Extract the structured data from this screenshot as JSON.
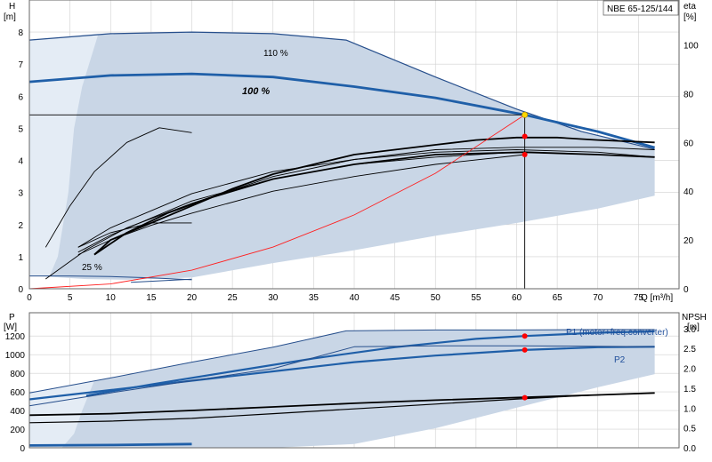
{
  "colors": {
    "envelope_fill": "#c9d6e6",
    "light_fill": "#e4ecf5",
    "envelope_edge": "#274f8c",
    "curve_blue": "#1f5fa8",
    "eta_black": "#000000",
    "system_red": "#ff2020",
    "marker_red": "#ff0000",
    "marker_yellow": "#ffd700"
  },
  "chart_data": [
    {
      "type": "line",
      "name": "head-eta",
      "title": "NBE 65-125/144",
      "x_axis": {
        "label": "Q [m³/h]",
        "range": [
          0,
          80
        ],
        "ticks": [
          0,
          5,
          10,
          15,
          20,
          25,
          30,
          35,
          40,
          45,
          50,
          55,
          60,
          65,
          70,
          75
        ]
      },
      "y_axis_left": {
        "label_top": "H",
        "label_unit": "[m]",
        "range": [
          0,
          9
        ],
        "ticks": [
          0,
          1,
          2,
          3,
          4,
          5,
          6,
          7,
          8
        ]
      },
      "y_axis_right": {
        "label_top": "eta",
        "label_unit": "[%]",
        "range": [
          0,
          118.4
        ],
        "ticks": [
          0,
          20,
          40,
          60,
          80,
          100
        ]
      },
      "labels": {
        "max": "110 %",
        "nominal": "100 %",
        "min": "25 %"
      },
      "grid": true,
      "envelope_upper": [
        [
          0,
          7.75
        ],
        [
          10,
          7.95
        ],
        [
          20,
          8.0
        ],
        [
          30,
          7.95
        ],
        [
          39,
          7.75
        ],
        [
          50,
          6.6
        ],
        [
          60,
          5.6
        ],
        [
          68,
          4.9
        ],
        [
          77,
          4.35
        ]
      ],
      "envelope_lower": [
        [
          77,
          2.9
        ],
        [
          70,
          2.5
        ],
        [
          60,
          2.05
        ],
        [
          50,
          1.65
        ],
        [
          40,
          1.2
        ],
        [
          30,
          0.8
        ],
        [
          20,
          0.35
        ],
        [
          12,
          0.28
        ],
        [
          7,
          0.3
        ],
        [
          2,
          0.38
        ],
        [
          0,
          0.4
        ],
        [
          0,
          6.45
        ]
      ],
      "light_region": [
        [
          0,
          7.75
        ],
        [
          8.5,
          7.95
        ],
        [
          6.5,
          6.3
        ],
        [
          5.5,
          5.0
        ],
        [
          4.8,
          3.0
        ],
        [
          3.5,
          1.0
        ],
        [
          2.5,
          0.4
        ],
        [
          0,
          0.4
        ]
      ],
      "series": [
        {
          "name": "110 %",
          "axis": "H",
          "points": [
            [
              0,
              7.75
            ],
            [
              10,
              7.95
            ],
            [
              20,
              8.0
            ],
            [
              30,
              7.95
            ],
            [
              39,
              7.75
            ],
            [
              50,
              6.6
            ],
            [
              60,
              5.6
            ],
            [
              68,
              4.9
            ],
            [
              77,
              4.35
            ]
          ]
        },
        {
          "name": "100 %",
          "axis": "H",
          "points": [
            [
              0,
              6.45
            ],
            [
              10,
              6.65
            ],
            [
              20,
              6.7
            ],
            [
              30,
              6.6
            ],
            [
              40,
              6.3
            ],
            [
              50,
              5.95
            ],
            [
              61,
              5.42
            ],
            [
              70,
              4.9
            ],
            [
              77,
              4.4
            ]
          ]
        },
        {
          "name": "25 %",
          "axis": "H",
          "points": [
            [
              0,
              0.4
            ],
            [
              5,
              0.4
            ],
            [
              10,
              0.38
            ],
            [
              15,
              0.34
            ],
            [
              20,
              0.28
            ]
          ]
        },
        {
          "name": "",
          "axis": "H",
          "points": [
            [
              12.5,
              0.2
            ],
            [
              20,
              0.3
            ]
          ]
        },
        {
          "name": "",
          "axis": "eta",
          "points": [
            [
              2,
              17
            ],
            [
              5,
              34
            ],
            [
              8,
              48
            ],
            [
              12,
              60
            ],
            [
              16,
              66
            ],
            [
              20,
              64
            ]
          ]
        },
        {
          "name": "",
          "axis": "eta",
          "points": [
            [
              6,
              17
            ],
            [
              10,
              23
            ],
            [
              15,
              27
            ],
            [
              20,
              27
            ]
          ]
        },
        {
          "name": "",
          "axis": "eta",
          "points": [
            [
              2,
              4
            ],
            [
              7,
              16
            ],
            [
              12,
              25
            ],
            [
              20,
              35
            ],
            [
              30,
              46
            ],
            [
              40,
              53
            ],
            [
              50,
              57
            ],
            [
              60,
              58
            ],
            [
              70,
              58
            ],
            [
              77,
              57
            ]
          ]
        },
        {
          "name": "",
          "axis": "eta",
          "points": [
            [
              6,
              17
            ],
            [
              10,
              25
            ],
            [
              15,
              32
            ],
            [
              20,
              39
            ],
            [
              30,
              48
            ],
            [
              40,
              53
            ],
            [
              50,
              56
            ],
            [
              60,
              57
            ],
            [
              70,
              56
            ],
            [
              77,
              54
            ]
          ]
        },
        {
          "name": "",
          "axis": "eta",
          "points": [
            [
              6,
              15
            ],
            [
              10,
              22
            ],
            [
              15,
              29
            ],
            [
              20,
              36
            ],
            [
              30,
              45
            ],
            [
              40,
              51
            ],
            [
              50,
              54
            ],
            [
              60,
              56
            ],
            [
              70,
              55
            ]
          ]
        },
        {
          "name": "",
          "axis": "eta",
          "points": [
            [
              6,
              14
            ],
            [
              10,
              20
            ],
            [
              15,
              26
            ],
            [
              20,
              31
            ],
            [
              30,
              40
            ],
            [
              40,
              46
            ],
            [
              50,
              51
            ],
            [
              61,
              55
            ]
          ]
        },
        {
          "name": "",
          "axis": "eta",
          "points": [
            [
              8,
              14
            ],
            [
              10,
              20
            ],
            [
              15,
              27
            ],
            [
              20,
              34
            ],
            [
              25,
              41
            ],
            [
              30,
              47
            ],
            [
              35,
              51
            ],
            [
              40,
              55
            ],
            [
              45,
              57
            ],
            [
              50,
              59
            ],
            [
              55,
              61
            ],
            [
              60,
              62
            ],
            [
              65,
              62
            ],
            [
              70,
              61
            ],
            [
              77,
              60
            ]
          ]
        },
        {
          "name": "",
          "axis": "eta",
          "points": [
            [
              8,
              14
            ],
            [
              12,
              23
            ],
            [
              17,
              31
            ],
            [
              22,
              37
            ],
            [
              30,
              45
            ],
            [
              40,
              51
            ],
            [
              50,
              55
            ],
            [
              61,
              56
            ],
            [
              70,
              55
            ],
            [
              77,
              54
            ]
          ]
        }
      ],
      "system_curve": [
        [
          0,
          0
        ],
        [
          10,
          0.15
        ],
        [
          20,
          0.58
        ],
        [
          30,
          1.3
        ],
        [
          40,
          2.3
        ],
        [
          50,
          3.6
        ],
        [
          61,
          5.42
        ]
      ],
      "operating_point": {
        "q": 61,
        "h": 5.42,
        "eta_points": [
          62.5,
          55
        ]
      }
    },
    {
      "type": "line",
      "name": "power-npsh",
      "x_axis": {
        "range": [
          0,
          80
        ]
      },
      "y_axis_left": {
        "label_top": "P",
        "label_unit": "[W]",
        "range": [
          0,
          1450
        ],
        "ticks": [
          0,
          200,
          400,
          600,
          800,
          1000,
          1200
        ]
      },
      "y_axis_right": {
        "label_top": "NPSH",
        "label_unit": "[m]",
        "range": [
          0,
          3.4
        ],
        "ticks": [
          "0.0",
          "0.5",
          "1.0",
          "1.5",
          "2.0",
          "2.5",
          "3.0"
        ]
      },
      "legend": {
        "p1": "P1 (motor+freq.converter)",
        "p2": "P2"
      },
      "envelope": [
        [
          0,
          590
        ],
        [
          10,
          750
        ],
        [
          20,
          920
        ],
        [
          30,
          1080
        ],
        [
          39,
          1255
        ],
        [
          50,
          1265
        ],
        [
          60,
          1265
        ],
        [
          70,
          1270
        ],
        [
          77,
          1270
        ],
        [
          77,
          790
        ],
        [
          70,
          650
        ],
        [
          60,
          430
        ],
        [
          50,
          210
        ],
        [
          40,
          40
        ],
        [
          30,
          0
        ],
        [
          12,
          0
        ],
        [
          5,
          0
        ],
        [
          0,
          0
        ]
      ],
      "light_region": [
        [
          0,
          590
        ],
        [
          8,
          720
        ],
        [
          6.5,
          400
        ],
        [
          5.5,
          150
        ],
        [
          4,
          0
        ],
        [
          0,
          0
        ]
      ],
      "series": [
        {
          "name": "P1 (motor+freq.converter)",
          "axis": "P",
          "points": [
            [
              7,
              560
            ],
            [
              15,
              680
            ],
            [
              25,
              820
            ],
            [
              35,
              960
            ],
            [
              45,
              1080
            ],
            [
              55,
              1170
            ],
            [
              61,
              1200
            ],
            [
              70,
              1235
            ],
            [
              77,
              1250
            ]
          ]
        },
        {
          "name": "P2",
          "axis": "P",
          "points": [
            [
              0,
              520
            ],
            [
              10,
              620
            ],
            [
              20,
              720
            ],
            [
              30,
              820
            ],
            [
              40,
              920
            ],
            [
              50,
              990
            ],
            [
              61,
              1050
            ],
            [
              70,
              1080
            ],
            [
              77,
              1085
            ]
          ]
        },
        {
          "name": "",
          "axis": "P",
          "points": [
            [
              0,
              590
            ],
            [
              10,
              750
            ],
            [
              20,
              920
            ],
            [
              30,
              1080
            ],
            [
              39,
              1255
            ],
            [
              50,
              1265
            ],
            [
              60,
              1265
            ],
            [
              70,
              1270
            ],
            [
              77,
              1270
            ]
          ]
        },
        {
          "name": "",
          "axis": "P",
          "points": [
            [
              0,
              450
            ],
            [
              10,
              590
            ],
            [
              20,
              720
            ],
            [
              30,
              850
            ],
            [
              40,
              1085
            ],
            [
              50,
              1095
            ],
            [
              60,
              1095
            ],
            [
              70,
              1090
            ],
            [
              77,
              1085
            ]
          ]
        },
        {
          "name": "",
          "axis": "NPSH",
          "points": [
            [
              0,
              0.82
            ],
            [
              10,
              0.86
            ],
            [
              20,
              0.94
            ],
            [
              30,
              1.03
            ],
            [
              40,
              1.12
            ],
            [
              50,
              1.2
            ],
            [
              61,
              1.27
            ],
            [
              70,
              1.33
            ],
            [
              77,
              1.38
            ]
          ]
        },
        {
          "name": "",
          "axis": "NPSH",
          "points": [
            [
              0,
              0.63
            ],
            [
              10,
              0.67
            ],
            [
              20,
              0.74
            ],
            [
              30,
              0.86
            ],
            [
              40,
              0.98
            ],
            [
              50,
              1.1
            ],
            [
              61,
              1.24
            ],
            [
              70,
              1.33
            ],
            [
              77,
              1.38
            ]
          ]
        },
        {
          "name": "",
          "axis": "P",
          "points": [
            [
              0,
              25
            ],
            [
              10,
              30
            ],
            [
              20,
              40
            ]
          ]
        }
      ],
      "markers": [
        {
          "q": 61,
          "axis": "P",
          "v": 1200
        },
        {
          "q": 61,
          "axis": "P",
          "v": 1050
        },
        {
          "q": 61,
          "axis": "NPSH",
          "v": 1.26
        }
      ]
    }
  ]
}
